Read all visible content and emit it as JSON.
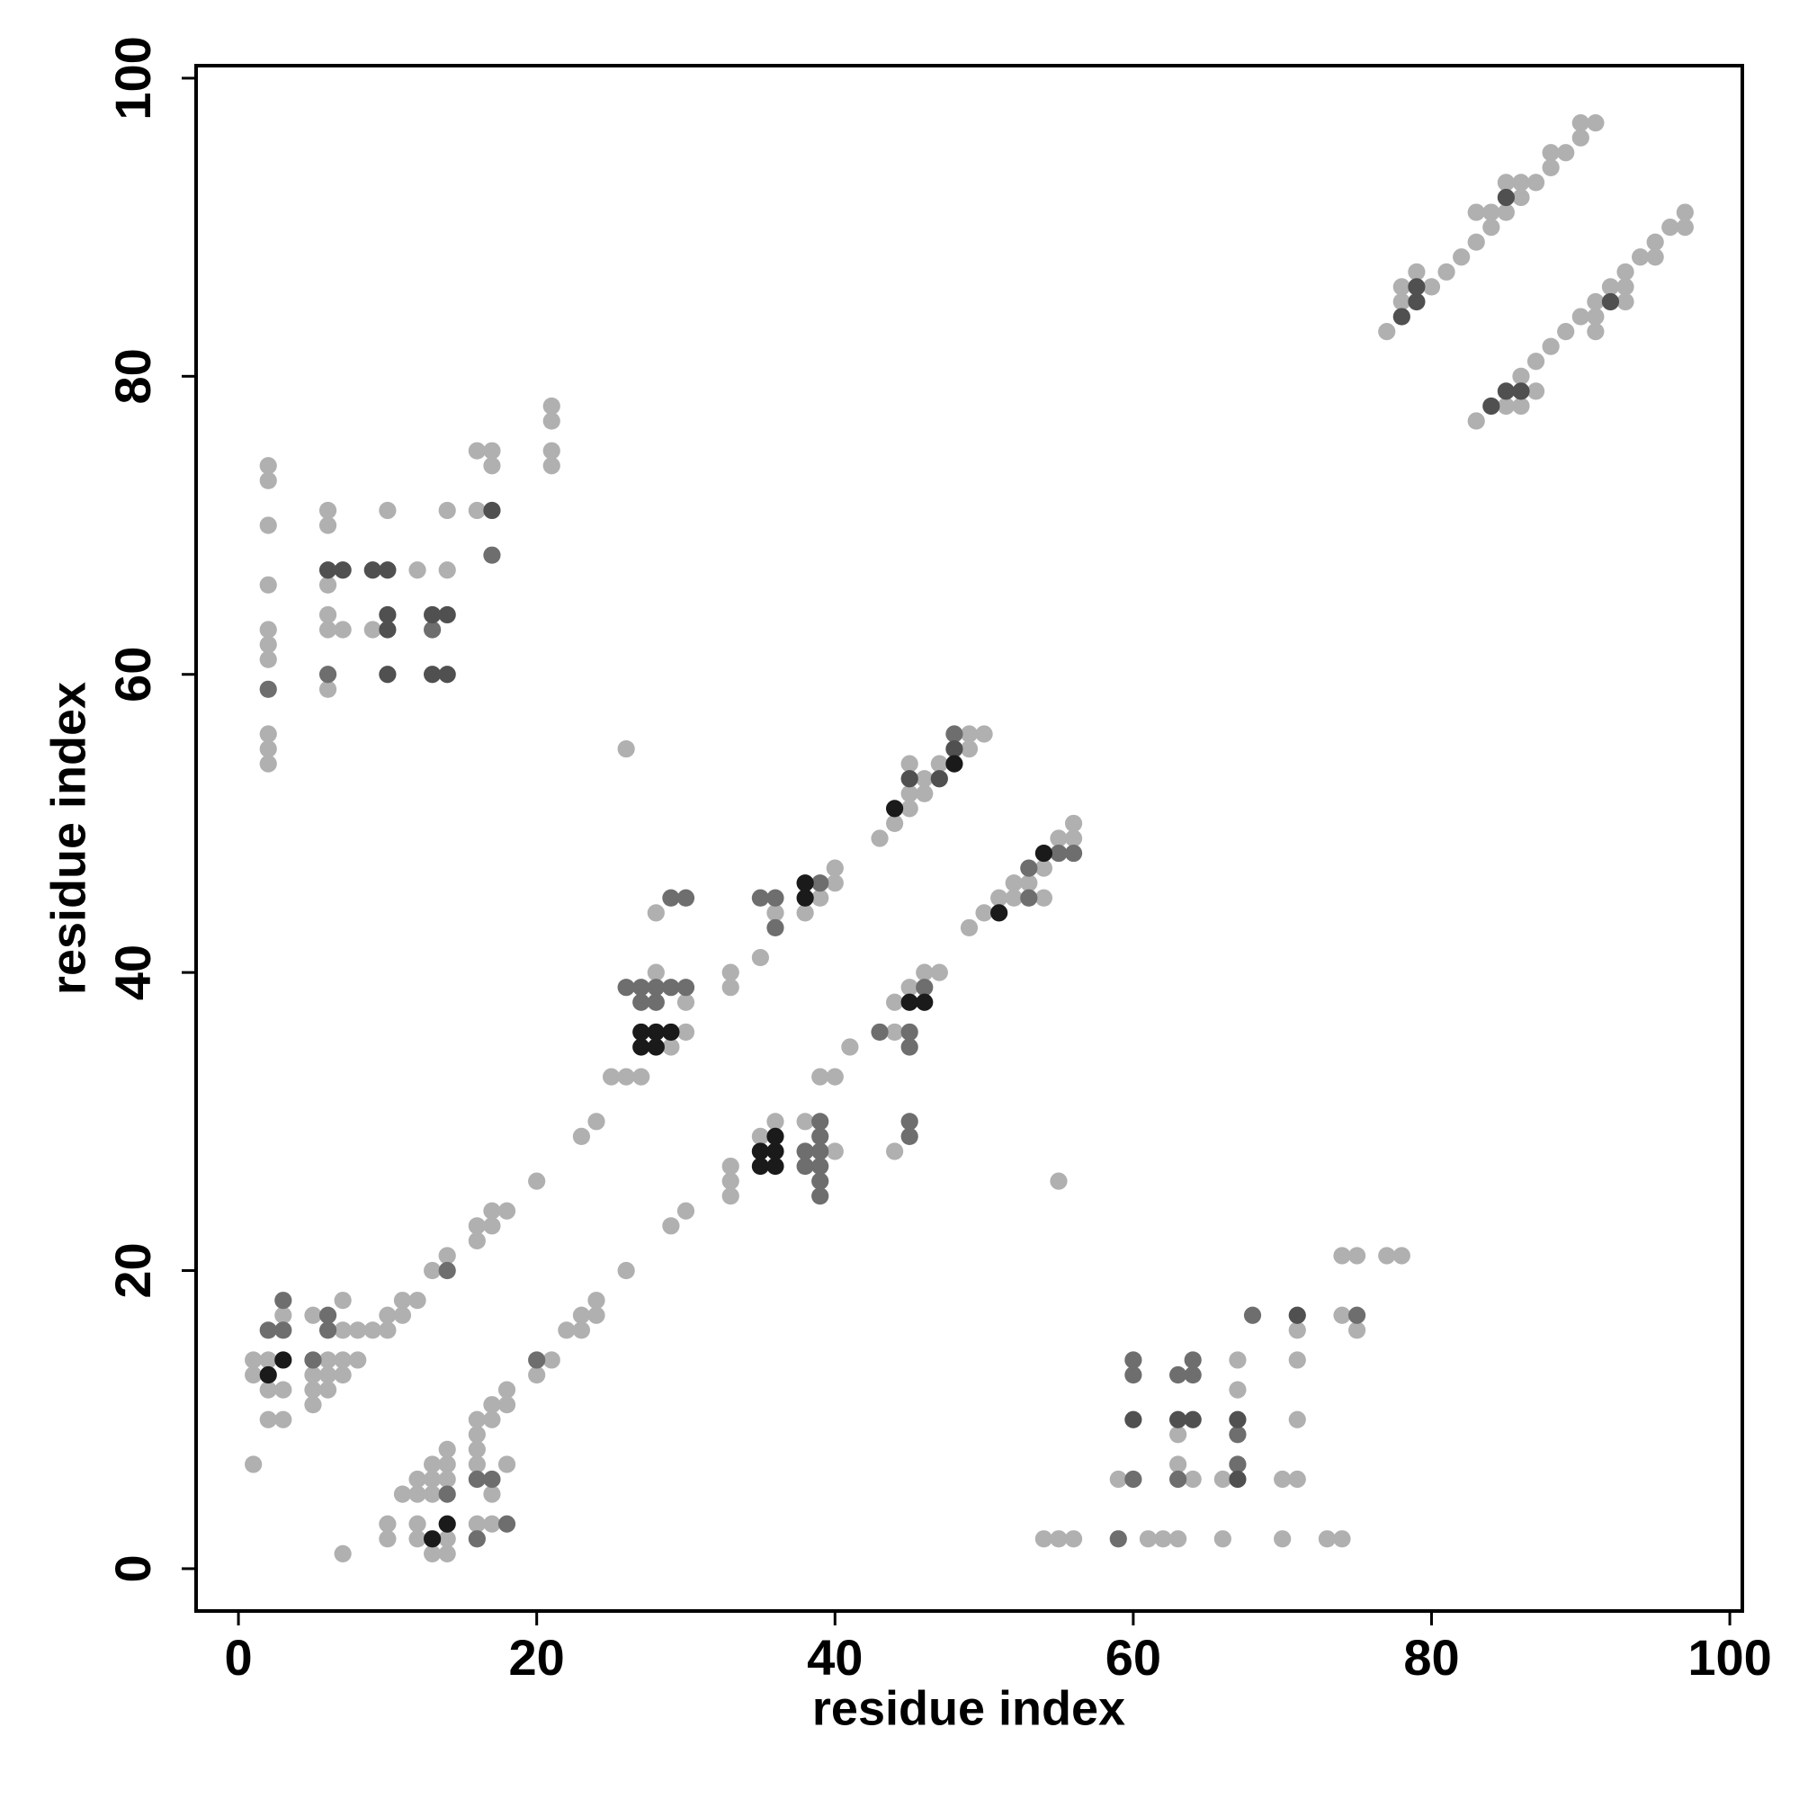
{
  "chart_data": {
    "type": "scatter",
    "xlabel": "residue index",
    "ylabel": "residue index",
    "xlim": [
      -2.84,
      100.84
    ],
    "ylim": [
      -2.84,
      100.84
    ],
    "xticks": [
      0,
      20,
      40,
      60,
      80,
      100
    ],
    "yticks": [
      0,
      20,
      40,
      60,
      80,
      100
    ],
    "series": [
      {
        "color": "#b0b0b0",
        "x": [
          77,
          78,
          78,
          79,
          80,
          81,
          82,
          83,
          83,
          84,
          84,
          85,
          85,
          86,
          86,
          87,
          88,
          88,
          89,
          90,
          90,
          91,
          83,
          85,
          86,
          86,
          87,
          87,
          88,
          89,
          90,
          91,
          91,
          91,
          92,
          93,
          93,
          93,
          94,
          95,
          95,
          96,
          97,
          97,
          2,
          2,
          2,
          2,
          2,
          2,
          2,
          2,
          2,
          2,
          6,
          6,
          6,
          6,
          6,
          6,
          7,
          9,
          10,
          12,
          14,
          14,
          16,
          16,
          17,
          17,
          21,
          21,
          21,
          21,
          26,
          49,
          49,
          50,
          47,
          46,
          46,
          45,
          45,
          45,
          44,
          43,
          40,
          40,
          39,
          38,
          36,
          35,
          33,
          33,
          28,
          28,
          30,
          30,
          29,
          25,
          26,
          27,
          24,
          23,
          20,
          18,
          17,
          17,
          16,
          16,
          14,
          13,
          12,
          11,
          11,
          10,
          10,
          9,
          8,
          7,
          7,
          5,
          3,
          1,
          2,
          1,
          2,
          3,
          2,
          3,
          6,
          7,
          8,
          5,
          6,
          7,
          5,
          6,
          5,
          1,
          56,
          56,
          55,
          54,
          53,
          52,
          54,
          52,
          51,
          50,
          49,
          47,
          46,
          45,
          44,
          44,
          41,
          40,
          39,
          44,
          38,
          40,
          36,
          35,
          33,
          33,
          33,
          30,
          29,
          26,
          24,
          24,
          23,
          23,
          22,
          21,
          20,
          55,
          7,
          10,
          10,
          11,
          12,
          12,
          12,
          12,
          13,
          13,
          13,
          13,
          14,
          14,
          14,
          14,
          14,
          16,
          16,
          16,
          16,
          16,
          17,
          17,
          17,
          17,
          18,
          18,
          18,
          54,
          55,
          56,
          61,
          62,
          63,
          66,
          70,
          73,
          74,
          59,
          63,
          63,
          64,
          66,
          67,
          67,
          70,
          71,
          71,
          71,
          71,
          74,
          75,
          77,
          78,
          74,
          75
        ],
        "values": [
          83,
          85,
          86,
          87,
          86,
          87,
          88,
          89,
          91,
          90,
          91,
          91,
          93,
          92,
          93,
          93,
          94,
          95,
          95,
          96,
          97,
          97,
          77,
          78,
          78,
          80,
          79,
          81,
          82,
          83,
          84,
          83,
          84,
          85,
          86,
          85,
          86,
          87,
          88,
          88,
          89,
          90,
          90,
          91,
          74,
          73,
          70,
          66,
          63,
          62,
          61,
          56,
          55,
          54,
          71,
          70,
          66,
          64,
          63,
          59,
          63,
          63,
          71,
          67,
          71,
          67,
          75,
          71,
          75,
          74,
          78,
          77,
          75,
          74,
          55,
          56,
          55,
          56,
          54,
          53,
          52,
          54,
          52,
          51,
          50,
          49,
          47,
          46,
          45,
          44,
          44,
          41,
          40,
          39,
          44,
          40,
          38,
          36,
          35,
          33,
          33,
          33,
          30,
          29,
          26,
          24,
          24,
          23,
          23,
          22,
          21,
          20,
          18,
          18,
          17,
          17,
          16,
          16,
          16,
          16,
          18,
          17,
          17,
          14,
          14,
          13,
          12,
          12,
          10,
          10,
          14,
          14,
          14,
          13,
          13,
          13,
          12,
          12,
          11,
          7,
          50,
          49,
          49,
          47,
          46,
          46,
          45,
          45,
          45,
          44,
          43,
          40,
          40,
          39,
          38,
          36,
          35,
          33,
          33,
          28,
          30,
          28,
          30,
          29,
          27,
          26,
          25,
          24,
          23,
          20,
          18,
          17,
          17,
          16,
          16,
          14,
          13,
          26,
          1,
          3,
          2,
          5,
          6,
          5,
          3,
          2,
          7,
          6,
          5,
          1,
          8,
          7,
          6,
          2,
          1,
          10,
          9,
          8,
          7,
          3,
          11,
          10,
          5,
          3,
          12,
          11,
          7,
          2,
          2,
          2,
          2,
          2,
          2,
          2,
          2,
          2,
          2,
          6,
          9,
          7,
          6,
          6,
          14,
          12,
          6,
          6,
          16,
          14,
          10,
          21,
          21,
          21,
          21,
          17,
          16
        ]
      },
      {
        "color": "#6e6e6e",
        "x": [
          2,
          6,
          13,
          17,
          48,
          36,
          35,
          36,
          39,
          29,
          30,
          27,
          26,
          28,
          29,
          30,
          27,
          28,
          14,
          6,
          6,
          3,
          3,
          2,
          5,
          56,
          55,
          53,
          53,
          46,
          43,
          45,
          45,
          45,
          45,
          39,
          39,
          38,
          39,
          38,
          39,
          39,
          39,
          20,
          14,
          16,
          16,
          17,
          18,
          59,
          60,
          60,
          60,
          63,
          64,
          64,
          63,
          67,
          67,
          68,
          75
        ],
        "values": [
          59,
          60,
          63,
          68,
          56,
          45,
          45,
          43,
          46,
          45,
          45,
          39,
          39,
          39,
          39,
          39,
          38,
          38,
          20,
          17,
          16,
          18,
          16,
          16,
          14,
          48,
          48,
          47,
          45,
          39,
          36,
          36,
          35,
          30,
          29,
          30,
          29,
          28,
          28,
          27,
          27,
          26,
          25,
          14,
          5,
          6,
          2,
          6,
          3,
          2,
          6,
          14,
          13,
          13,
          14,
          13,
          6,
          9,
          7,
          17,
          17
        ]
      },
      {
        "color": "#505050",
        "x": [
          78,
          79,
          79,
          85,
          84,
          85,
          86,
          92,
          6,
          7,
          9,
          10,
          10,
          10,
          10,
          13,
          13,
          14,
          14,
          17,
          48,
          47,
          45,
          60,
          63,
          64,
          67,
          67,
          71
        ],
        "values": [
          84,
          85,
          86,
          92,
          78,
          79,
          79,
          85,
          67,
          67,
          67,
          67,
          64,
          63,
          60,
          64,
          60,
          64,
          60,
          71,
          55,
          53,
          53,
          10,
          10,
          10,
          10,
          6,
          17
        ]
      },
      {
        "color": "#1a1a1a",
        "x": [
          48,
          44,
          38,
          38,
          27,
          28,
          29,
          27,
          28,
          54,
          51,
          46,
          45,
          36,
          35,
          36,
          35,
          36,
          3,
          2,
          13,
          14
        ],
        "values": [
          54,
          51,
          46,
          45,
          36,
          36,
          36,
          35,
          35,
          48,
          44,
          38,
          38,
          29,
          28,
          28,
          27,
          27,
          14,
          13,
          2,
          3
        ]
      }
    ]
  }
}
